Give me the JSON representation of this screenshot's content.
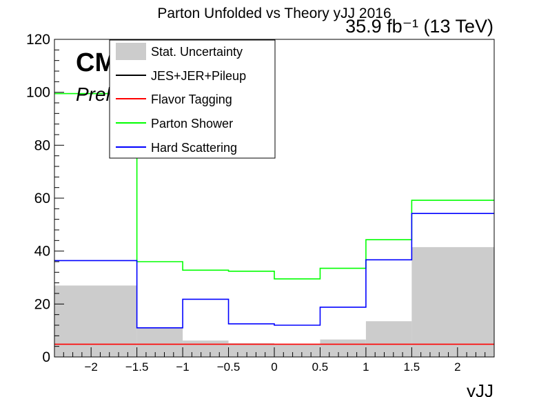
{
  "chart_data": {
    "type": "histogram",
    "title": "Parton Unfolded vs Theory yJJ 2016",
    "lumi_text": "35.9 fb⁻¹ (13 TeV)",
    "experiment": "CMS",
    "status": "Preliminary",
    "xlabel": "yJJ",
    "ylabel": "",
    "xlim": [
      -2.4,
      2.4
    ],
    "ylim": [
      0,
      120
    ],
    "grid": false,
    "legend_position": "top-left",
    "x_ticks": [
      "−2",
      "−1.5",
      "−1",
      "−0.5",
      "0",
      "0.5",
      "1",
      "1.5",
      "2"
    ],
    "y_ticks": [
      "0",
      "20",
      "40",
      "60",
      "80",
      "100",
      "120"
    ],
    "bin_edges": [
      -2.4,
      -1.5,
      -1,
      -0.5,
      0,
      0.5,
      1,
      1.5,
      2.4
    ],
    "series": [
      {
        "name": "Stat. Uncertainty",
        "style": "fill",
        "color": "#cccccc",
        "values": [
          27,
          11,
          6.2,
          5.2,
          5.0,
          6.6,
          13.5,
          41.5
        ]
      },
      {
        "name": "JES+JER+Pileup",
        "style": "line",
        "color": "#000000",
        "values": []
      },
      {
        "name": "Flavor Tagging",
        "style": "line",
        "color": "#ff0000",
        "values": [
          4.8,
          4.8,
          4.8,
          4.8,
          4.8,
          4.8,
          4.8,
          4.8
        ]
      },
      {
        "name": "Parton Shower",
        "style": "line",
        "color": "#00ff00",
        "values": [
          99.5,
          36,
          32.8,
          32.4,
          29.5,
          33.5,
          44.3,
          59.2
        ]
      },
      {
        "name": "Hard Scattering",
        "style": "line",
        "color": "#0000ff",
        "values": [
          36.4,
          11,
          21.8,
          12.5,
          12,
          18.8,
          36.7,
          54.2
        ]
      }
    ]
  }
}
